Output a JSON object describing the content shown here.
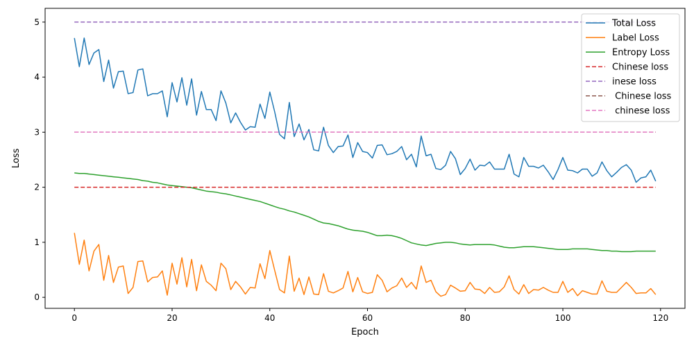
{
  "chart_data": {
    "type": "line",
    "title": "",
    "xlabel": "Epoch",
    "ylabel": "Loss",
    "xlim": [
      -6,
      125
    ],
    "ylim": [
      -0.2,
      5.25
    ],
    "xticks": [
      0,
      20,
      40,
      60,
      80,
      100,
      120
    ],
    "yticks": [
      0,
      1,
      2,
      3,
      4,
      5
    ],
    "grid": false,
    "legend_position": "top-right",
    "x": [
      0,
      1,
      2,
      3,
      4,
      5,
      6,
      7,
      8,
      9,
      10,
      11,
      12,
      13,
      14,
      15,
      16,
      17,
      18,
      19,
      20,
      21,
      22,
      23,
      24,
      25,
      26,
      27,
      28,
      29,
      30,
      31,
      32,
      33,
      34,
      35,
      36,
      37,
      38,
      39,
      40,
      41,
      42,
      43,
      44,
      45,
      46,
      47,
      48,
      49,
      50,
      51,
      52,
      53,
      54,
      55,
      56,
      57,
      58,
      59,
      60,
      61,
      62,
      63,
      64,
      65,
      66,
      67,
      68,
      69,
      70,
      71,
      72,
      73,
      74,
      75,
      76,
      77,
      78,
      79,
      80,
      81,
      82,
      83,
      84,
      85,
      86,
      87,
      88,
      89,
      90,
      91,
      92,
      93,
      94,
      95,
      96,
      97,
      98,
      99,
      100,
      101,
      102,
      103,
      104,
      105,
      106,
      107,
      108,
      109,
      110,
      111,
      112,
      113,
      114,
      115,
      116,
      117,
      118,
      119
    ],
    "series": [
      {
        "name": "Total Loss",
        "color": "#1f77b4",
        "dashed": false,
        "values": [
          4.71,
          4.19,
          4.71,
          4.23,
          4.44,
          4.5,
          3.92,
          4.31,
          3.8,
          4.1,
          4.11,
          3.7,
          3.72,
          4.13,
          4.15,
          3.66,
          3.7,
          3.7,
          3.75,
          3.28,
          3.9,
          3.55,
          3.99,
          3.49,
          3.97,
          3.31,
          3.74,
          3.41,
          3.41,
          3.21,
          3.75,
          3.53,
          3.17,
          3.35,
          3.18,
          3.04,
          3.1,
          3.09,
          3.51,
          3.25,
          3.73,
          3.37,
          2.96,
          2.88,
          3.54,
          2.92,
          3.15,
          2.86,
          3.05,
          2.68,
          2.66,
          3.09,
          2.76,
          2.63,
          2.74,
          2.75,
          2.95,
          2.54,
          2.81,
          2.65,
          2.63,
          2.53,
          2.76,
          2.77,
          2.59,
          2.61,
          2.65,
          2.74,
          2.5,
          2.6,
          2.37,
          2.93,
          2.57,
          2.6,
          2.34,
          2.32,
          2.4,
          2.65,
          2.52,
          2.23,
          2.34,
          2.51,
          2.31,
          2.4,
          2.39,
          2.46,
          2.33,
          2.33,
          2.33,
          2.6,
          2.24,
          2.19,
          2.54,
          2.38,
          2.38,
          2.35,
          2.4,
          2.28,
          2.14,
          2.32,
          2.54,
          2.31,
          2.3,
          2.26,
          2.33,
          2.33,
          2.2,
          2.26,
          2.46,
          2.3,
          2.19,
          2.27,
          2.36,
          2.41,
          2.31,
          2.09,
          2.17,
          2.19,
          2.31,
          2.11
        ]
      },
      {
        "name": "Label Loss",
        "color": "#ff7f0e",
        "dashed": false,
        "values": [
          1.17,
          0.6,
          1.04,
          0.48,
          0.84,
          0.96,
          0.31,
          0.76,
          0.27,
          0.55,
          0.57,
          0.07,
          0.18,
          0.65,
          0.66,
          0.28,
          0.36,
          0.37,
          0.48,
          0.04,
          0.62,
          0.24,
          0.72,
          0.19,
          0.69,
          0.12,
          0.59,
          0.29,
          0.22,
          0.12,
          0.62,
          0.52,
          0.14,
          0.29,
          0.19,
          0.06,
          0.18,
          0.17,
          0.61,
          0.34,
          0.85,
          0.49,
          0.14,
          0.08,
          0.75,
          0.11,
          0.35,
          0.05,
          0.37,
          0.06,
          0.05,
          0.43,
          0.11,
          0.08,
          0.12,
          0.17,
          0.47,
          0.1,
          0.36,
          0.1,
          0.07,
          0.09,
          0.41,
          0.31,
          0.1,
          0.17,
          0.21,
          0.35,
          0.18,
          0.27,
          0.15,
          0.57,
          0.27,
          0.31,
          0.1,
          0.02,
          0.05,
          0.22,
          0.17,
          0.11,
          0.12,
          0.27,
          0.15,
          0.14,
          0.07,
          0.18,
          0.09,
          0.1,
          0.19,
          0.39,
          0.14,
          0.06,
          0.23,
          0.07,
          0.14,
          0.13,
          0.18,
          0.13,
          0.09,
          0.09,
          0.29,
          0.09,
          0.16,
          0.03,
          0.12,
          0.09,
          0.06,
          0.06,
          0.3,
          0.11,
          0.09,
          0.09,
          0.18,
          0.27,
          0.18,
          0.07,
          0.08,
          0.08,
          0.16,
          0.05
        ]
      },
      {
        "name": "Entropy Loss",
        "color": "#2ca02c",
        "dashed": false,
        "values": [
          2.26,
          2.25,
          2.25,
          2.24,
          2.23,
          2.22,
          2.21,
          2.2,
          2.19,
          2.18,
          2.17,
          2.16,
          2.15,
          2.14,
          2.12,
          2.11,
          2.09,
          2.08,
          2.06,
          2.04,
          2.03,
          2.02,
          2.01,
          2.0,
          1.99,
          1.97,
          1.95,
          1.93,
          1.92,
          1.91,
          1.89,
          1.88,
          1.86,
          1.84,
          1.82,
          1.8,
          1.78,
          1.76,
          1.74,
          1.71,
          1.68,
          1.65,
          1.62,
          1.6,
          1.57,
          1.55,
          1.52,
          1.49,
          1.46,
          1.42,
          1.38,
          1.35,
          1.34,
          1.32,
          1.3,
          1.27,
          1.24,
          1.22,
          1.21,
          1.2,
          1.18,
          1.15,
          1.12,
          1.12,
          1.13,
          1.12,
          1.1,
          1.07,
          1.03,
          0.99,
          0.97,
          0.95,
          0.94,
          0.96,
          0.98,
          0.99,
          1.0,
          1.0,
          0.99,
          0.97,
          0.96,
          0.95,
          0.96,
          0.96,
          0.96,
          0.96,
          0.95,
          0.93,
          0.91,
          0.9,
          0.9,
          0.91,
          0.92,
          0.92,
          0.92,
          0.91,
          0.9,
          0.89,
          0.88,
          0.87,
          0.87,
          0.87,
          0.88,
          0.88,
          0.88,
          0.88,
          0.87,
          0.86,
          0.85,
          0.85,
          0.84,
          0.84,
          0.83,
          0.83,
          0.83,
          0.84,
          0.84,
          0.84,
          0.84,
          0.84
        ]
      },
      {
        "name": "Chinese loss",
        "color": "#d62728",
        "dashed": true,
        "constant": 2.0
      },
      {
        "name": "inese loss",
        "color": "#9467bd",
        "dashed": true,
        "constant": 5.0
      },
      {
        "name": " Chinese loss",
        "color": "#8c564b",
        "dashed": true,
        "constant": 3.0
      },
      {
        "name": " chinese loss",
        "color": "#e377c2",
        "dashed": true,
        "constant": 3.0
      }
    ]
  }
}
